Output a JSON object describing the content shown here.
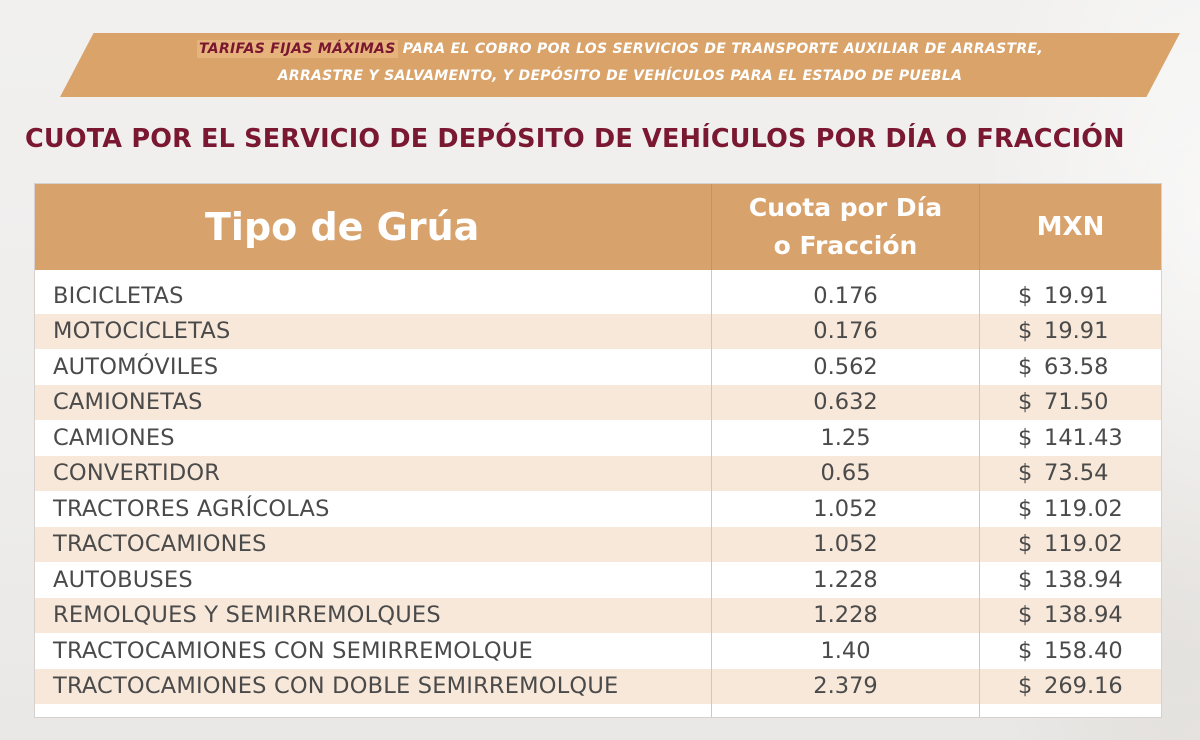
{
  "banner": {
    "line1_strong": "TARIFAS FIJAS MÁXIMAS",
    "line1_rest": "PARA EL COBRO POR LOS SERVICIOS DE TRANSPORTE AUXILIAR DE ARRASTRE,",
    "line2": "ARRASTRE Y SALVAMENTO, Y DEPÓSITO DE VEHÍCULOS PARA EL ESTADO DE PUEBLA"
  },
  "section_title": "CUOTA POR EL SERVICIO DE DEPÓSITO DE VEHÍCULOS POR DÍA O FRACCIÓN",
  "table": {
    "headers": {
      "tipo": "Tipo de Grúa",
      "cuota": "Cuota por Día\no Fracción",
      "mxn": "MXN"
    },
    "currency_symbol": "$",
    "rows": [
      {
        "tipo": "BICICLETAS",
        "cuota": "0.176",
        "mxn": "19.91"
      },
      {
        "tipo": "MOTOCICLETAS",
        "cuota": "0.176",
        "mxn": "19.91"
      },
      {
        "tipo": "AUTOMÓVILES",
        "cuota": "0.562",
        "mxn": "63.58"
      },
      {
        "tipo": "CAMIONETAS",
        "cuota": "0.632",
        "mxn": "71.50"
      },
      {
        "tipo": "CAMIONES",
        "cuota": "1.25",
        "mxn": "141.43"
      },
      {
        "tipo": "CONVERTIDOR",
        "cuota": "0.65",
        "mxn": "73.54"
      },
      {
        "tipo": "TRACTORES AGRÍCOLAS",
        "cuota": "1.052",
        "mxn": "119.02"
      },
      {
        "tipo": "TRACTOCAMIONES",
        "cuota": "1.052",
        "mxn": "119.02"
      },
      {
        "tipo": "AUTOBUSES",
        "cuota": "1.228",
        "mxn": "138.94"
      },
      {
        "tipo": "REMOLQUES Y SEMIRREMOLQUES",
        "cuota": "1.228",
        "mxn": "138.94"
      },
      {
        "tipo": "TRACTOCAMIONES CON SEMIRREMOLQUE",
        "cuota": "1.40",
        "mxn": "158.40"
      },
      {
        "tipo": "TRACTOCAMIONES CON DOBLE SEMIRREMOLQUE",
        "cuota": "2.379",
        "mxn": "269.16"
      }
    ]
  },
  "colors": {
    "accent": "#d8a26c",
    "title": "#7a1731",
    "row_alt": "#f7e8da"
  }
}
